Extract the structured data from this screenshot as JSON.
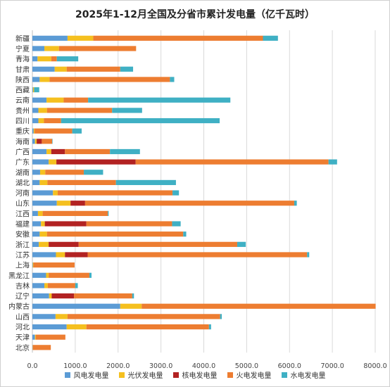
{
  "chart_data": {
    "type": "bar",
    "orientation": "horizontal",
    "stacked": true,
    "title": "2025年1-12月全国及分省市累计发电量（亿千瓦时）",
    "categories": [
      "新疆",
      "宁夏",
      "青海",
      "甘肃",
      "陕西",
      "西藏",
      "云南",
      "贵州",
      "四川",
      "重庆",
      "海南",
      "广西",
      "广东",
      "湖南",
      "湖北",
      "河南",
      "山东",
      "江西",
      "福建",
      "安徽",
      "浙江",
      "江苏",
      "上海",
      "黑龙江",
      "吉林",
      "辽宁",
      "内蒙古",
      "山西",
      "河北",
      "天津",
      "北京"
    ],
    "series": [
      {
        "name": "风电发电量",
        "color": "#5b9bd5",
        "values": [
          820,
          280,
          120,
          520,
          170,
          15,
          330,
          140,
          140,
          30,
          60,
          330,
          380,
          180,
          170,
          480,
          570,
          130,
          200,
          170,
          150,
          550,
          10,
          320,
          280,
          390,
          2050,
          540,
          800,
          60,
          5
        ]
      },
      {
        "name": "光伏发电量",
        "color": "#f5c01f",
        "values": [
          600,
          340,
          320,
          280,
          230,
          25,
          400,
          200,
          130,
          20,
          40,
          110,
          180,
          120,
          180,
          110,
          320,
          110,
          90,
          170,
          230,
          210,
          15,
          60,
          80,
          60,
          500,
          280,
          460,
          20,
          5
        ]
      },
      {
        "name": "核电发电量",
        "color": "#b22222",
        "values": [
          0,
          0,
          0,
          0,
          0,
          0,
          0,
          0,
          0,
          0,
          120,
          320,
          1850,
          0,
          0,
          0,
          340,
          0,
          970,
          0,
          700,
          530,
          0,
          0,
          0,
          520,
          0,
          0,
          0,
          0,
          0
        ]
      },
      {
        "name": "火电发电量",
        "color": "#ed7d31",
        "values": [
          3960,
          1800,
          130,
          1250,
          2810,
          0,
          570,
          1520,
          400,
          880,
          240,
          1050,
          4500,
          900,
          1600,
          2680,
          4880,
          1520,
          2000,
          3180,
          3700,
          5120,
          960,
          950,
          640,
          1360,
          5460,
          3560,
          2860,
          690,
          420
        ]
      },
      {
        "name": "水电发电量",
        "color": "#3fb0c4",
        "values": [
          350,
          0,
          500,
          300,
          100,
          120,
          3320,
          700,
          3700,
          220,
          10,
          700,
          200,
          450,
          1400,
          150,
          60,
          20,
          200,
          70,
          200,
          50,
          0,
          50,
          60,
          40,
          0,
          40,
          50,
          0,
          0
        ]
      }
    ],
    "xlim": [
      0,
      8000
    ],
    "xticks": [
      "0.0",
      "1000.0",
      "2000.0",
      "3000.0",
      "4000.0",
      "5000.0",
      "6000.0",
      "7000.0",
      "8000.0"
    ],
    "grid": true,
    "legend": "bottom"
  }
}
